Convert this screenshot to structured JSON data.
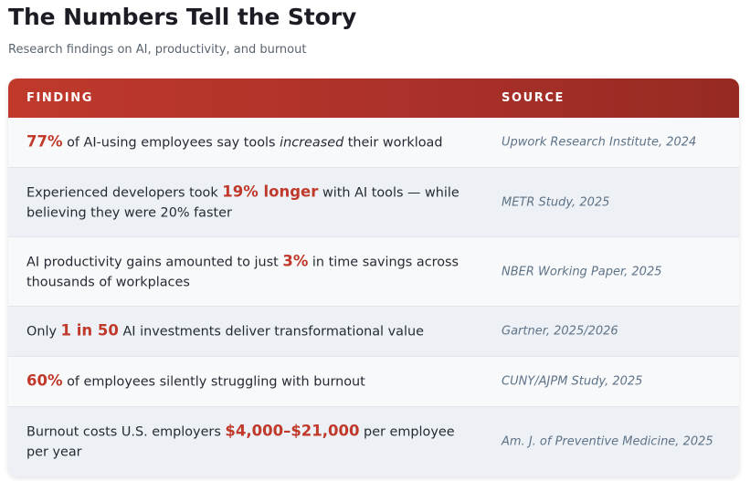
{
  "title": "The Numbers Tell the Story",
  "subtitle": "Research findings on AI, productivity, and burnout",
  "table": {
    "headers": {
      "finding": "FINDING",
      "source": "SOURCE"
    },
    "rows": [
      {
        "highlight": "77%",
        "text_before": "",
        "text_after": " of AI-using employees say tools ",
        "emphasis": "increased",
        "text_end": " their workload",
        "source": "Upwork Research Institute, 2024"
      },
      {
        "text_before": "Experienced developers took ",
        "highlight": "19% longer",
        "text_after": " with AI tools — while believing they were 20% faster",
        "source": "METR Study, 2025"
      },
      {
        "text_before": "AI productivity gains amounted to just ",
        "highlight": "3%",
        "text_after": " in time savings across thousands of workplaces",
        "source": "NBER Working Paper, 2025"
      },
      {
        "text_before": "Only ",
        "highlight": "1 in 50",
        "text_after": " AI investments deliver transformational value",
        "source": "Gartner, 2025/2026"
      },
      {
        "text_before": "",
        "highlight": "60%",
        "text_after": " of employees silently struggling with burnout",
        "source": "CUNY/AJPM Study, 2025"
      },
      {
        "text_before": "Burnout costs U.S. employers ",
        "highlight": "$4,000–$21,000",
        "text_after": " per employee per year",
        "source": "Am. J. of Preventive Medicine, 2025"
      }
    ]
  },
  "colors": {
    "accent": "#c0392b",
    "header_dark": "#962a22",
    "source_text": "#5f7387"
  }
}
